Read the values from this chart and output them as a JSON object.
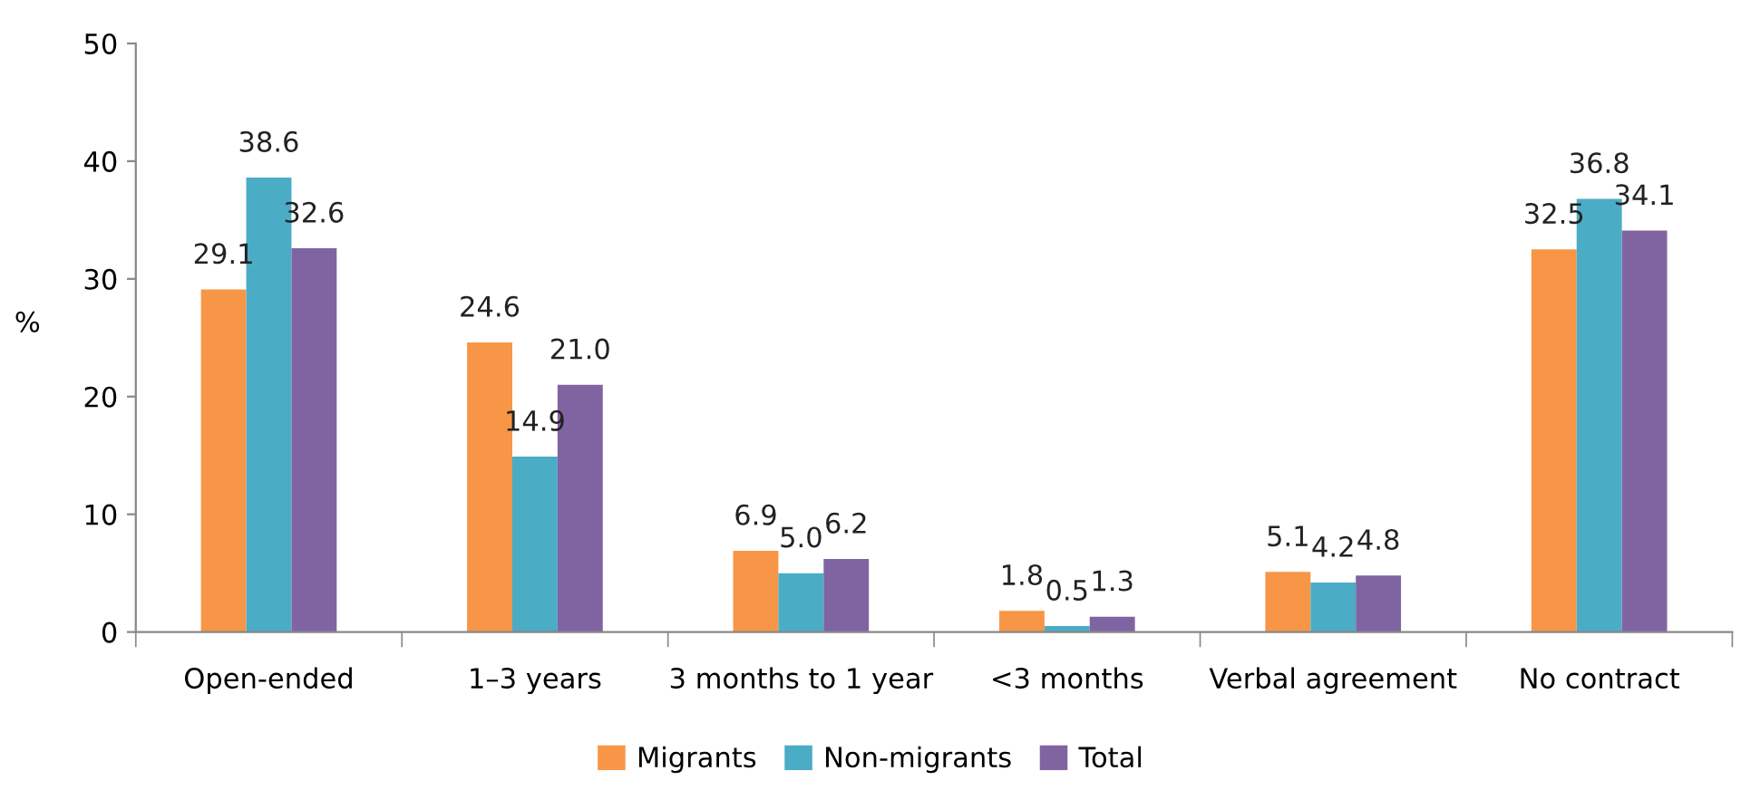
{
  "chart_data": {
    "type": "bar",
    "ylabel": "%",
    "categories": [
      "Open-ended",
      "1–3 years",
      "3 months to 1 year",
      "<3 months",
      "Verbal agreement",
      "No contract"
    ],
    "series": [
      {
        "name": "Migrants",
        "color": "#f79646",
        "values": [
          29.1,
          24.6,
          6.9,
          1.8,
          5.1,
          32.5
        ]
      },
      {
        "name": "Non-migrants",
        "color": "#4bacc6",
        "values": [
          38.6,
          14.9,
          5.0,
          0.5,
          4.2,
          36.8
        ]
      },
      {
        "name": "Total",
        "color": "#8064a2",
        "values": [
          32.6,
          21.0,
          6.2,
          1.3,
          4.8,
          34.1
        ]
      }
    ],
    "ylim": [
      0,
      50
    ],
    "yticks": [
      0,
      10,
      20,
      30,
      40,
      50
    ],
    "grid": false,
    "legend": "bottom",
    "value_labels": [
      [
        "29.1",
        "24.6",
        "6.9",
        "1.8",
        "5.1",
        "32.5"
      ],
      [
        "38.6",
        "14.9",
        "5.0",
        "0.5",
        "4.2",
        "36.8"
      ],
      [
        "32.6",
        "21.0",
        "6.2",
        "1.3",
        "4.8",
        "34.1"
      ]
    ]
  }
}
